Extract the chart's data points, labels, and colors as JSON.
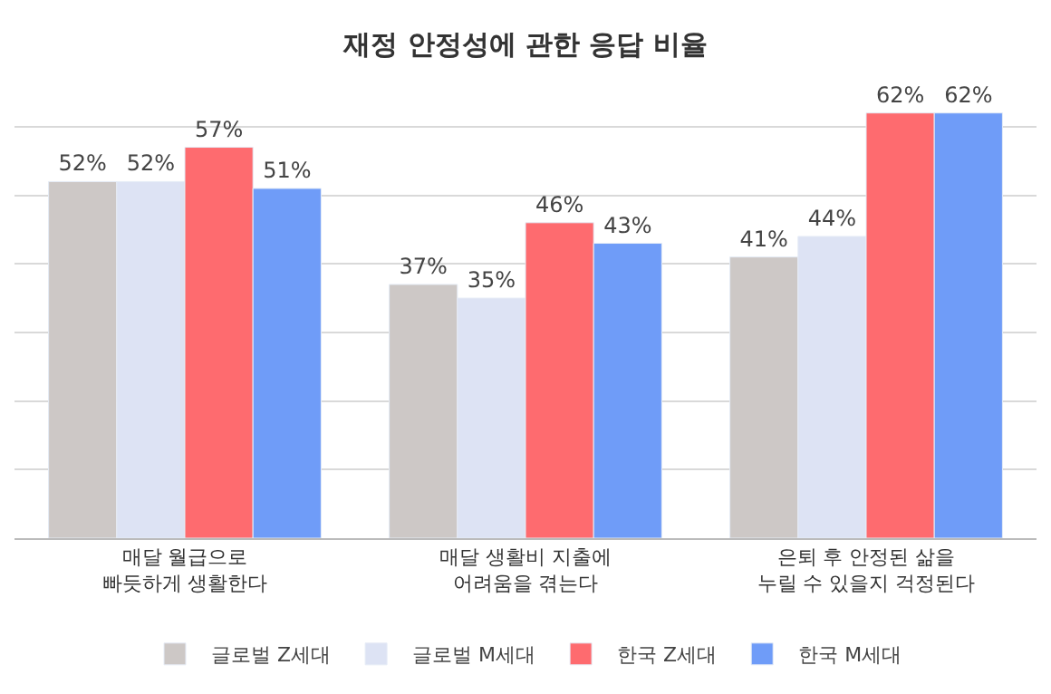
{
  "chart_data": {
    "type": "bar",
    "title": "재정 안정성에 관한 응답 비율",
    "categories": [
      "매달 월급으로\n빠듯하게 생활한다",
      "매달 생활비 지출에\n어려움을 겪는다",
      "은퇴 후 안정된 삶을\n누릴 수 있을지 걱정된다"
    ],
    "series": [
      {
        "name": "글로벌 Z세대",
        "color": "#cdc8c6",
        "values": [
          52,
          37,
          41
        ],
        "value_labels": [
          "52%",
          "37%",
          "41%"
        ]
      },
      {
        "name": "글로벌 M세대",
        "color": "#dde3f4",
        "values": [
          52,
          35,
          44
        ],
        "value_labels": [
          "52%",
          "35%",
          "44%"
        ]
      },
      {
        "name": "한국 Z세대",
        "color": "#fe6b6f",
        "values": [
          57,
          46,
          62
        ],
        "value_labels": [
          "57%",
          "46%",
          "62%"
        ]
      },
      {
        "name": "한국 M세대",
        "color": "#6f9cf8",
        "values": [
          51,
          43,
          62
        ],
        "value_labels": [
          "51%",
          "43%",
          "62%"
        ]
      }
    ],
    "grid": "y",
    "legend": "bottom",
    "tick_labels": "x"
  }
}
